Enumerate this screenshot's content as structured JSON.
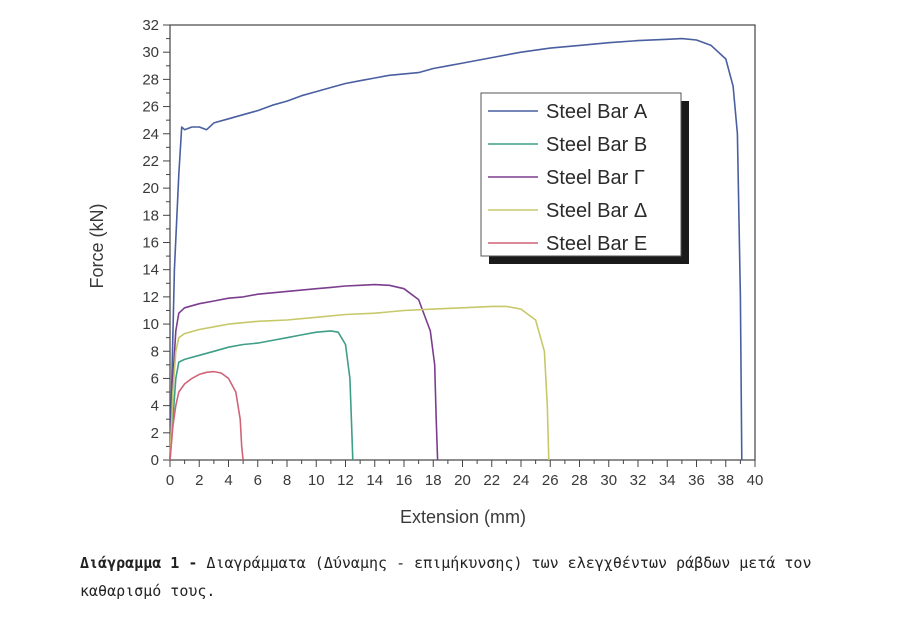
{
  "chart_data": {
    "type": "line",
    "xlabel": "Extension (mm)",
    "ylabel": "Force (kN)",
    "xlim": [
      0,
      40
    ],
    "ylim": [
      0,
      32
    ],
    "xticks": [
      0,
      2,
      4,
      6,
      8,
      10,
      12,
      14,
      16,
      18,
      20,
      22,
      24,
      26,
      28,
      30,
      32,
      34,
      36,
      38,
      40
    ],
    "yticks": [
      0,
      2,
      4,
      6,
      8,
      10,
      12,
      14,
      16,
      18,
      20,
      22,
      24,
      26,
      28,
      30,
      32
    ],
    "grid": false,
    "legend_position": "upper-right",
    "series": [
      {
        "name": "Steel Bar A",
        "color": "#4a5fa0",
        "points": [
          [
            0,
            0
          ],
          [
            0.3,
            14
          ],
          [
            0.6,
            21
          ],
          [
            0.8,
            24.5
          ],
          [
            1.0,
            24.3
          ],
          [
            1.5,
            24.5
          ],
          [
            2.0,
            24.5
          ],
          [
            2.5,
            24.3
          ],
          [
            3,
            24.8
          ],
          [
            4,
            25.1
          ],
          [
            5,
            25.4
          ],
          [
            6,
            25.7
          ],
          [
            7,
            26.1
          ],
          [
            8,
            26.4
          ],
          [
            9,
            26.8
          ],
          [
            10,
            27.1
          ],
          [
            11,
            27.4
          ],
          [
            12,
            27.7
          ],
          [
            13,
            27.9
          ],
          [
            14,
            28.1
          ],
          [
            15,
            28.3
          ],
          [
            16,
            28.4
          ],
          [
            17,
            28.5
          ],
          [
            18,
            28.8
          ],
          [
            19,
            29.0
          ],
          [
            20,
            29.2
          ],
          [
            22,
            29.6
          ],
          [
            24,
            30.0
          ],
          [
            26,
            30.3
          ],
          [
            28,
            30.5
          ],
          [
            30,
            30.7
          ],
          [
            32,
            30.85
          ],
          [
            34,
            30.95
          ],
          [
            35,
            31.0
          ],
          [
            36,
            30.9
          ],
          [
            37,
            30.5
          ],
          [
            38,
            29.5
          ],
          [
            38.5,
            27.5
          ],
          [
            38.8,
            24
          ],
          [
            39.0,
            12
          ],
          [
            39.1,
            0
          ]
        ]
      },
      {
        "name": "Steel Bar B",
        "color": "#3f9e88",
        "points": [
          [
            0,
            0
          ],
          [
            0.2,
            3
          ],
          [
            0.4,
            6
          ],
          [
            0.6,
            7.2
          ],
          [
            1,
            7.4
          ],
          [
            2,
            7.7
          ],
          [
            3,
            8.0
          ],
          [
            4,
            8.3
          ],
          [
            5,
            8.5
          ],
          [
            6,
            8.6
          ],
          [
            7,
            8.8
          ],
          [
            8,
            9.0
          ],
          [
            9,
            9.2
          ],
          [
            10,
            9.4
          ],
          [
            11,
            9.5
          ],
          [
            11.5,
            9.4
          ],
          [
            12,
            8.5
          ],
          [
            12.3,
            6
          ],
          [
            12.4,
            3
          ],
          [
            12.5,
            0
          ]
        ]
      },
      {
        "name": "Steel Bar Γ",
        "color": "#7b3d8e",
        "points": [
          [
            0,
            0
          ],
          [
            0.2,
            6
          ],
          [
            0.4,
            9.5
          ],
          [
            0.6,
            10.8
          ],
          [
            1,
            11.2
          ],
          [
            2,
            11.5
          ],
          [
            3,
            11.7
          ],
          [
            4,
            11.9
          ],
          [
            5,
            12.0
          ],
          [
            6,
            12.2
          ],
          [
            7,
            12.3
          ],
          [
            8,
            12.4
          ],
          [
            9,
            12.5
          ],
          [
            10,
            12.6
          ],
          [
            11,
            12.7
          ],
          [
            12,
            12.8
          ],
          [
            13,
            12.85
          ],
          [
            14,
            12.9
          ],
          [
            15,
            12.85
          ],
          [
            16,
            12.6
          ],
          [
            17,
            11.8
          ],
          [
            17.8,
            9.5
          ],
          [
            18.1,
            7
          ],
          [
            18.2,
            3
          ],
          [
            18.3,
            0
          ]
        ]
      },
      {
        "name": "Steel Bar Δ",
        "color": "#c7c86a",
        "points": [
          [
            0,
            0
          ],
          [
            0.2,
            5
          ],
          [
            0.4,
            8
          ],
          [
            0.6,
            9.0
          ],
          [
            1,
            9.3
          ],
          [
            2,
            9.6
          ],
          [
            3,
            9.8
          ],
          [
            4,
            10.0
          ],
          [
            5,
            10.1
          ],
          [
            6,
            10.2
          ],
          [
            8,
            10.3
          ],
          [
            10,
            10.5
          ],
          [
            12,
            10.7
          ],
          [
            14,
            10.8
          ],
          [
            16,
            11.0
          ],
          [
            18,
            11.1
          ],
          [
            20,
            11.2
          ],
          [
            22,
            11.3
          ],
          [
            23,
            11.3
          ],
          [
            24,
            11.1
          ],
          [
            25,
            10.3
          ],
          [
            25.6,
            8
          ],
          [
            25.8,
            4
          ],
          [
            25.9,
            0
          ]
        ]
      },
      {
        "name": "Steel Bar E",
        "color": "#d06478",
        "points": [
          [
            0,
            0
          ],
          [
            0.2,
            2.5
          ],
          [
            0.4,
            4
          ],
          [
            0.6,
            5
          ],
          [
            1,
            5.6
          ],
          [
            1.5,
            6.0
          ],
          [
            2,
            6.3
          ],
          [
            2.5,
            6.45
          ],
          [
            3,
            6.5
          ],
          [
            3.5,
            6.4
          ],
          [
            4,
            6.0
          ],
          [
            4.5,
            5.0
          ],
          [
            4.8,
            3
          ],
          [
            4.9,
            1
          ],
          [
            5.0,
            0
          ]
        ]
      }
    ]
  },
  "legend": {
    "items": [
      {
        "label": "Steel Bar Α",
        "color": "#4a5fa0"
      },
      {
        "label": "Steel Bar Β",
        "color": "#3f9e88"
      },
      {
        "label": "Steel Bar Γ",
        "color": "#7b3d8e"
      },
      {
        "label": "Steel Bar Δ",
        "color": "#c7c86a"
      },
      {
        "label": "Steel Bar Ε",
        "color": "#d06478"
      }
    ]
  },
  "caption": {
    "label": "Διάγραμμα 1 -",
    "text": " Διαγράμματα (Δύναμης - επιμήκυνσης) των ελεγχθέντων ράβδων μετά τον καθαρισμό τους."
  }
}
